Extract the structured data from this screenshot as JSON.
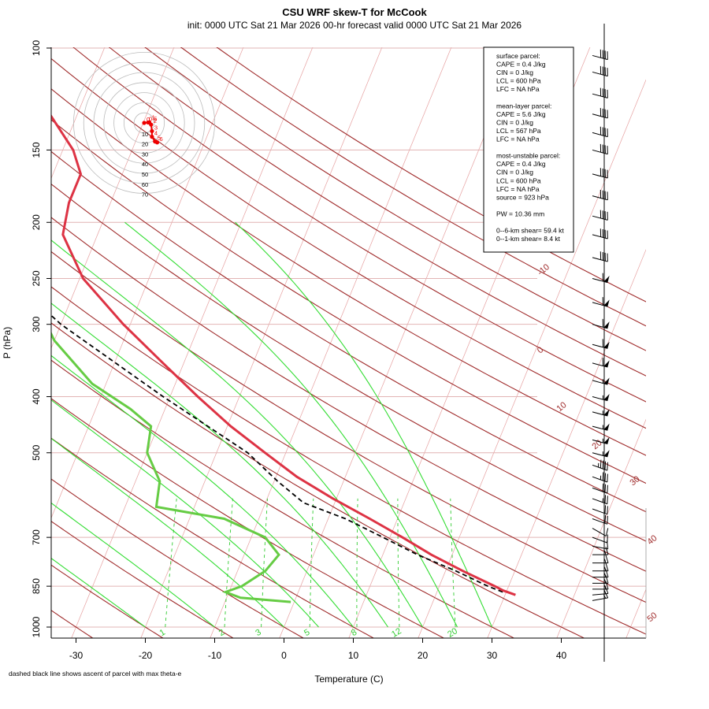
{
  "title": "CSU WRF skew-T for McCook",
  "subtitle": "init: 0000 UTC Sat 21 Mar 2026    00-hr forecast valid 0000 UTC Sat 21 Mar 2026",
  "footnote": "dashed black line shows ascent of parcel with max theta-e",
  "colors": {
    "temperature": "#dd3344",
    "dewpoint": "#66cc44",
    "parcel": "#000000",
    "dry_adiabat": "#a02c2c",
    "isotherm": "#e6a0a0",
    "mixing_ratio": "#33cc33",
    "moist_adiabat": "#33dd33",
    "hodograph": "#ee0000"
  },
  "info_box": {
    "lines": [
      "surface parcel:",
      "CAPE = 0.4 J/kg",
      "CIN = 0 J/kg",
      "LCL = 600 hPa",
      "LFC = NA hPa",
      "",
      "mean-layer parcel:",
      "CAPE = 5.6 J/kg",
      "CIN = 0 J/kg",
      "LCL = 567 hPa",
      "LFC = NA hPa",
      "",
      "most-unstable parcel:",
      "CAPE = 0.4 J/kg",
      "CIN = 0 J/kg",
      "LCL = 600 hPa",
      "LFC = NA hPa",
      "source = 923 hPa",
      "",
      "PW =  10.36 mm",
      "",
      "0--6-km shear= 59.4 kt",
      "0--1-km shear= 8.4 kt"
    ]
  },
  "chart_data": {
    "type": "line",
    "diagram": "skew-T log-p",
    "xlabel": "Temperature (C)",
    "ylabel": "P (hPa)",
    "xlim": [
      -33,
      47
    ],
    "ylim": [
      1000,
      100
    ],
    "y_scale": "log",
    "x_ticks": [
      -30,
      -20,
      -10,
      0,
      10,
      20,
      30,
      40
    ],
    "x_tick_labels": [
      "-30",
      "-20",
      "-10",
      "0",
      "10",
      "20",
      "30",
      "40"
    ],
    "y_ticks": [
      1000,
      850,
      700,
      500,
      400,
      300,
      250,
      200,
      150,
      100
    ],
    "y_tick_labels": [
      "1000",
      "850",
      "700",
      "500",
      "400",
      "300",
      "250",
      "200",
      "150",
      "100"
    ],
    "series": [
      {
        "key": "temperature",
        "points": [
          {
            "p": 880,
            "t": 31.5
          },
          {
            "p": 865,
            "t": 29.5
          },
          {
            "p": 850,
            "t": 28.0
          },
          {
            "p": 800,
            "t": 22.5
          },
          {
            "p": 750,
            "t": 17.0
          },
          {
            "p": 700,
            "t": 11.8
          },
          {
            "p": 650,
            "t": 6.0
          },
          {
            "p": 600,
            "t": -0.5
          },
          {
            "p": 550,
            "t": -7.0
          },
          {
            "p": 500,
            "t": -13.0
          },
          {
            "p": 450,
            "t": -19.5
          },
          {
            "p": 400,
            "t": -26.0
          },
          {
            "p": 350,
            "t": -33.0
          },
          {
            "p": 300,
            "t": -41.0
          },
          {
            "p": 250,
            "t": -49.5
          },
          {
            "p": 210,
            "t": -55.0
          },
          {
            "p": 185,
            "t": -56.0
          },
          {
            "p": 165,
            "t": -56.0
          },
          {
            "p": 150,
            "t": -58.5
          },
          {
            "p": 130,
            "t": -64.0
          },
          {
            "p": 115,
            "t": -69.0
          },
          {
            "p": 103,
            "t": -73.5
          }
        ]
      },
      {
        "key": "dewpoint",
        "points": [
          {
            "p": 905,
            "t": -0.5
          },
          {
            "p": 890,
            "t": -8.0
          },
          {
            "p": 870,
            "t": -10.5
          },
          {
            "p": 850,
            "t": -8.5
          },
          {
            "p": 800,
            "t": -6.0
          },
          {
            "p": 750,
            "t": -5.0
          },
          {
            "p": 700,
            "t": -8.0
          },
          {
            "p": 650,
            "t": -15.0
          },
          {
            "p": 620,
            "t": -25.5
          },
          {
            "p": 560,
            "t": -26.5
          },
          {
            "p": 500,
            "t": -30.0
          },
          {
            "p": 450,
            "t": -31.0
          },
          {
            "p": 420,
            "t": -35.0
          },
          {
            "p": 380,
            "t": -42.0
          },
          {
            "p": 320,
            "t": -50.0
          },
          {
            "p": 250,
            "t": -58.0
          },
          {
            "p": 200,
            "t": -64.0
          },
          {
            "p": 175,
            "t": -66.5
          }
        ]
      },
      {
        "key": "parcel",
        "points": [
          {
            "p": 870,
            "t": 29.5
          },
          {
            "p": 850,
            "t": 27.0
          },
          {
            "p": 800,
            "t": 21.5
          },
          {
            "p": 750,
            "t": 15.0
          },
          {
            "p": 700,
            "t": 9.0
          },
          {
            "p": 650,
            "t": 2.5
          },
          {
            "p": 610,
            "t": -4.5
          },
          {
            "p": 560,
            "t": -9.5
          },
          {
            "p": 500,
            "t": -15.5
          },
          {
            "p": 400,
            "t": -31.0
          },
          {
            "p": 300,
            "t": -50.0
          },
          {
            "p": 250,
            "t": -60.0
          },
          {
            "p": 200,
            "t": -70.0
          },
          {
            "p": 150,
            "t": -80.5
          },
          {
            "p": 120,
            "t": -87.0
          },
          {
            "p": 110,
            "t": -89.5
          }
        ]
      }
    ],
    "dry_adiabat_labels": [
      "-10",
      "0",
      "10",
      "20",
      "30",
      "40",
      "50"
    ],
    "mixing_ratio_labels": [
      "1",
      "2",
      "3",
      "5",
      "8",
      "12",
      "20"
    ],
    "hodograph": {
      "ring_labels": [
        "10",
        "20",
        "30",
        "40",
        "50",
        "60",
        "70"
      ],
      "point_labels": [
        "0",
        "0.5",
        "1",
        "2",
        "3",
        "4",
        "5",
        "6"
      ],
      "points": [
        {
          "u": 0,
          "v": 0
        },
        {
          "u": 9,
          "v": 1
        },
        {
          "u": 12,
          "v": 1
        },
        {
          "u": 16,
          "v": -4
        },
        {
          "u": 18,
          "v": -19
        },
        {
          "u": 18,
          "v": -32
        },
        {
          "u": 25,
          "v": -43
        },
        {
          "u": 30,
          "v": -45
        }
      ]
    },
    "wind_barbs": [
      {
        "p": 900,
        "spd": 15,
        "dir": 260
      },
      {
        "p": 880,
        "spd": 15,
        "dir": 265
      },
      {
        "p": 860,
        "spd": 15,
        "dir": 270
      },
      {
        "p": 840,
        "spd": 15,
        "dir": 270
      },
      {
        "p": 820,
        "spd": 15,
        "dir": 270
      },
      {
        "p": 800,
        "spd": 15,
        "dir": 270
      },
      {
        "p": 775,
        "spd": 15,
        "dir": 270
      },
      {
        "p": 750,
        "spd": 15,
        "dir": 270
      },
      {
        "p": 725,
        "spd": 10,
        "dir": 280
      },
      {
        "p": 700,
        "spd": 10,
        "dir": 290
      },
      {
        "p": 675,
        "spd": 10,
        "dir": 300
      },
      {
        "p": 650,
        "spd": 20,
        "dir": 290
      },
      {
        "p": 625,
        "spd": 20,
        "dir": 290
      },
      {
        "p": 600,
        "spd": 25,
        "dir": 290
      },
      {
        "p": 575,
        "spd": 30,
        "dir": 290
      },
      {
        "p": 550,
        "spd": 35,
        "dir": 290
      },
      {
        "p": 525,
        "spd": 45,
        "dir": 290
      },
      {
        "p": 500,
        "spd": 55,
        "dir": 285
      },
      {
        "p": 475,
        "spd": 55,
        "dir": 285
      },
      {
        "p": 450,
        "spd": 55,
        "dir": 285
      },
      {
        "p": 425,
        "spd": 55,
        "dir": 285
      },
      {
        "p": 400,
        "spd": 55,
        "dir": 285
      },
      {
        "p": 375,
        "spd": 55,
        "dir": 285
      },
      {
        "p": 350,
        "spd": 60,
        "dir": 285
      },
      {
        "p": 325,
        "spd": 60,
        "dir": 285
      },
      {
        "p": 300,
        "spd": 60,
        "dir": 285
      },
      {
        "p": 275,
        "spd": 60,
        "dir": 285
      },
      {
        "p": 250,
        "spd": 60,
        "dir": 285
      },
      {
        "p": 230,
        "spd": 40,
        "dir": 285
      },
      {
        "p": 210,
        "spd": 40,
        "dir": 285
      },
      {
        "p": 195,
        "spd": 40,
        "dir": 285
      },
      {
        "p": 180,
        "spd": 40,
        "dir": 285
      },
      {
        "p": 165,
        "spd": 40,
        "dir": 285
      },
      {
        "p": 150,
        "spd": 40,
        "dir": 285
      },
      {
        "p": 140,
        "spd": 40,
        "dir": 285
      },
      {
        "p": 130,
        "spd": 40,
        "dir": 285
      },
      {
        "p": 120,
        "spd": 40,
        "dir": 285
      },
      {
        "p": 110,
        "spd": 40,
        "dir": 285
      },
      {
        "p": 103,
        "spd": 40,
        "dir": 285
      }
    ]
  }
}
